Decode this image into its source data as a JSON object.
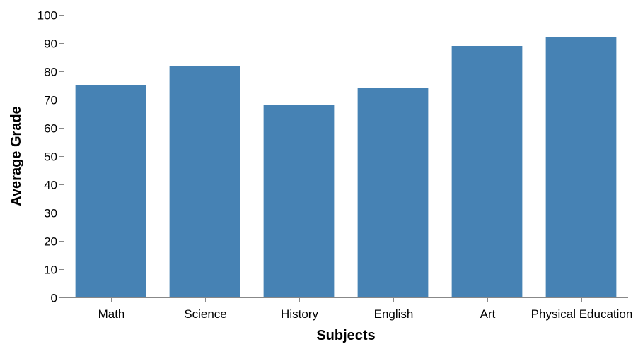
{
  "chart_data": {
    "type": "bar",
    "categories": [
      "Math",
      "Science",
      "History",
      "English",
      "Art",
      "Physical Education"
    ],
    "values": [
      75,
      82,
      68,
      74,
      89,
      92
    ],
    "title": "",
    "xlabel": "Subjects",
    "ylabel": "Average Grade",
    "ylim": [
      0,
      100
    ],
    "yticks": [
      0,
      10,
      20,
      30,
      40,
      50,
      60,
      70,
      80,
      90,
      100
    ],
    "grid": false,
    "bar_color": "#4682b4",
    "axis_color": "#888888"
  }
}
